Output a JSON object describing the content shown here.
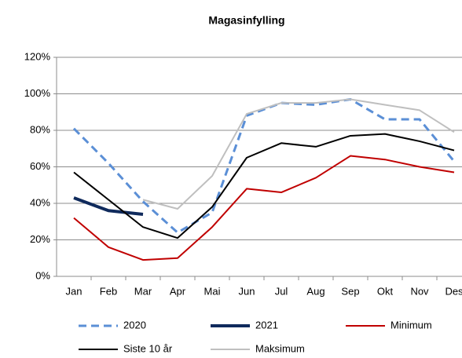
{
  "chart_data": {
    "type": "line",
    "title": "Magasinfylling",
    "categories": [
      "Jan",
      "Feb",
      "Mar",
      "Apr",
      "Mai",
      "Jun",
      "Jul",
      "Aug",
      "Sep",
      "Okt",
      "Nov",
      "Des"
    ],
    "series": [
      {
        "name": "2020",
        "color": "#5b8fd6",
        "dashed": true,
        "values": [
          81,
          62,
          41,
          24,
          35,
          88,
          95,
          94,
          97,
          86,
          86,
          63
        ]
      },
      {
        "name": "2021",
        "color": "#0f2a5c",
        "values": [
          43,
          36,
          34,
          null,
          null,
          null,
          null,
          null,
          null,
          null,
          null,
          null
        ]
      },
      {
        "name": "Minimum",
        "color": "#c00000",
        "values": [
          32,
          16,
          9,
          10,
          27,
          48,
          46,
          54,
          66,
          64,
          60,
          57
        ]
      },
      {
        "name": "Siste 10 år",
        "color": "#000000",
        "values": [
          57,
          42,
          27,
          21,
          38,
          65,
          73,
          71,
          77,
          78,
          74,
          69
        ]
      },
      {
        "name": "Maksimum",
        "color": "#bfbfbf",
        "values": [
          null,
          null,
          42,
          37,
          55,
          89,
          95,
          95,
          97,
          94,
          91,
          79
        ]
      }
    ],
    "ylim": [
      0,
      120
    ],
    "yticks": [
      {
        "value": 0,
        "label": "0%"
      },
      {
        "value": 20,
        "label": "20%"
      },
      {
        "value": 40,
        "label": "40%"
      },
      {
        "value": 60,
        "label": "60%"
      },
      {
        "value": 80,
        "label": "80%"
      },
      {
        "value": 100,
        "label": "100%"
      },
      {
        "value": 120,
        "label": "120%"
      }
    ],
    "grid": true
  }
}
